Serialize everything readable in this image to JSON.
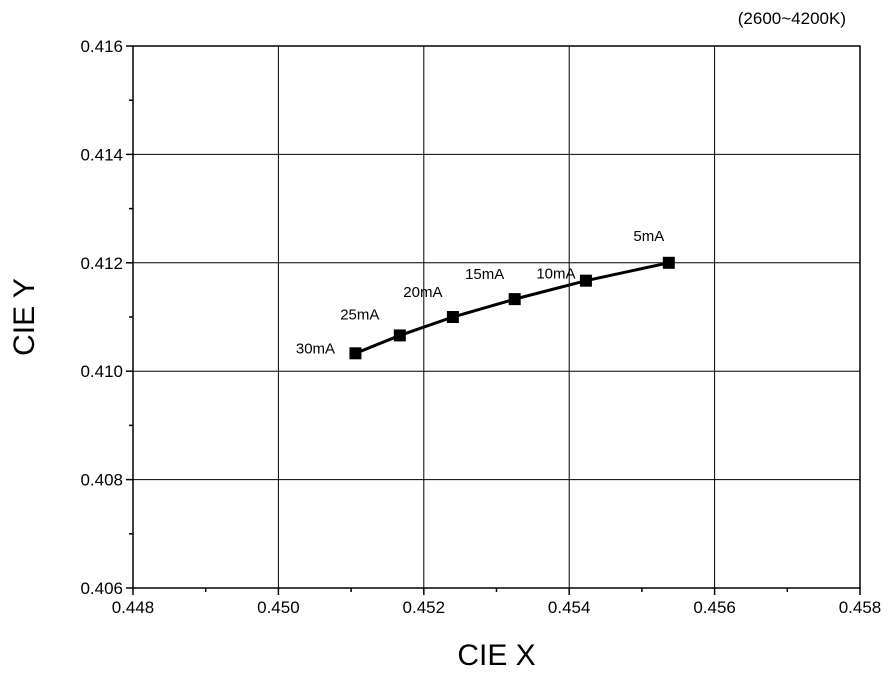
{
  "chart_data": {
    "type": "line",
    "title": "",
    "annotation_top_right": "(2600~4200K)",
    "xlabel": "CIE X",
    "ylabel": "CIE Y",
    "xlim": [
      0.448,
      0.458
    ],
    "ylim": [
      0.406,
      0.416
    ],
    "xticks": [
      "0.448",
      "0.450",
      "0.452",
      "0.454",
      "0.456",
      "0.458"
    ],
    "yticks": [
      "0.406",
      "0.408",
      "0.410",
      "0.412",
      "0.414",
      "0.416"
    ],
    "grid": true,
    "series": [
      {
        "marker": "square",
        "color": "#000000",
        "points": [
          {
            "x": 0.45537,
            "y": 0.412,
            "label": "5mA"
          },
          {
            "x": 0.45423,
            "y": 0.41167,
            "label": "10mA"
          },
          {
            "x": 0.45325,
            "y": 0.41133,
            "label": "15mA"
          },
          {
            "x": 0.4524,
            "y": 0.411,
            "label": "20mA"
          },
          {
            "x": 0.45167,
            "y": 0.41066,
            "label": "25mA"
          },
          {
            "x": 0.45106,
            "y": 0.41033,
            "label": "30mA"
          }
        ]
      }
    ]
  }
}
